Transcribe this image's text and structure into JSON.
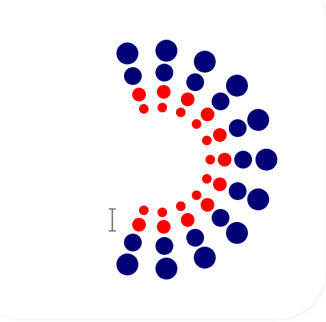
{
  "colors": {
    "background": "#ffffff",
    "outer": "#000077",
    "inner": "#ff0000",
    "cursor": "#7a7a7a"
  },
  "icons": {
    "text_cursor": "i-beam-cursor-icon"
  }
}
